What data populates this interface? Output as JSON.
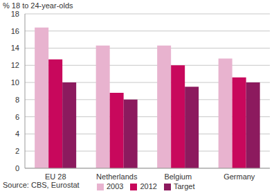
{
  "chart_data": {
    "type": "bar",
    "ylabel": "% 18 to 24-year-olds",
    "source": "Source: CBS, Eurostat",
    "categories": [
      "EU 28",
      "Netherlands",
      "Belgium",
      "Germany"
    ],
    "series": [
      {
        "name": "2003",
        "color": "#e8b3cf",
        "values": [
          16.4,
          14.3,
          14.3,
          12.8
        ]
      },
      {
        "name": "2012",
        "color": "#c8085c",
        "values": [
          12.7,
          8.8,
          12.0,
          10.6
        ]
      },
      {
        "name": "Target",
        "color": "#8c1a5e",
        "values": [
          10,
          8,
          9.5,
          10
        ]
      }
    ],
    "ylim": [
      0,
      18
    ],
    "yticks": [
      0,
      2,
      4,
      6,
      8,
      10,
      12,
      14,
      16,
      18
    ],
    "grid": true,
    "legend": "bottom"
  }
}
